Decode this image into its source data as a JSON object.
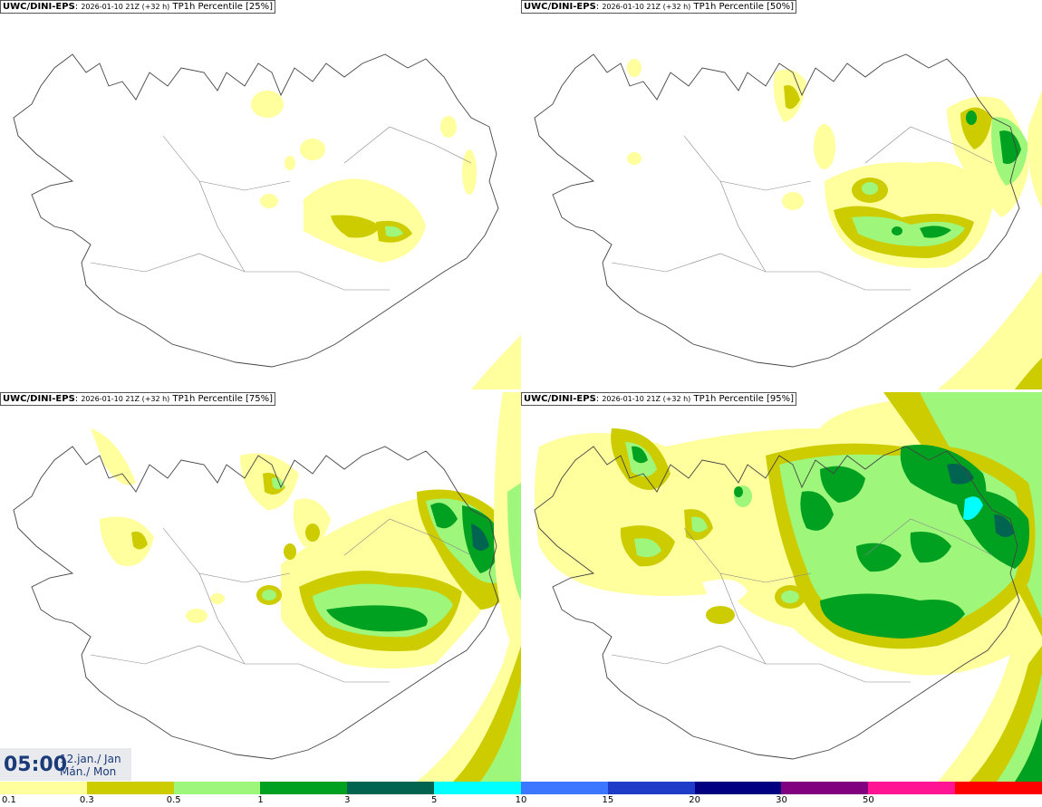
{
  "panels": [
    {
      "model": "UWC/DINI-EPS",
      "run": "2026-01-10 21Z (+32 h)",
      "param": "TP1h Percentile [25%]"
    },
    {
      "model": "UWC/DINI-EPS",
      "run": "2026-01-10 21Z (+32 h)",
      "param": "TP1h Percentile [50%]"
    },
    {
      "model": "UWC/DINI-EPS",
      "run": "2026-01-10 21Z (+32 h)",
      "param": "TP1h Percentile [75%]"
    },
    {
      "model": "UWC/DINI-EPS",
      "run": "2026-01-10 21Z (+32 h)",
      "param": "TP1h Percentile [95%]"
    }
  ],
  "valid": {
    "time": "05:00",
    "date_line1": "12.jan./ Jan",
    "date_line2": "Mán./ Mon"
  },
  "legend": {
    "ticks": [
      "0.1",
      "0.3",
      "0.5",
      "1",
      "3",
      "5",
      "10",
      "15",
      "20",
      "30",
      "50"
    ],
    "colors": [
      "#ffff9e",
      "#cccc00",
      "#9ef77a",
      "#00a020",
      "#006450",
      "#00ffff",
      "#3c78ff",
      "#1e3cc8",
      "#000080",
      "#800080",
      "#ff1493",
      "#ff0000"
    ]
  }
}
